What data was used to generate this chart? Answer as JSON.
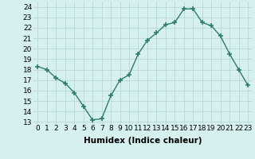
{
  "x": [
    0,
    1,
    2,
    3,
    4,
    5,
    6,
    7,
    8,
    9,
    10,
    11,
    12,
    13,
    14,
    15,
    16,
    17,
    18,
    19,
    20,
    21,
    22,
    23
  ],
  "y": [
    18.3,
    18.0,
    17.2,
    16.7,
    15.8,
    14.5,
    13.2,
    13.3,
    15.5,
    17.0,
    17.5,
    19.5,
    20.8,
    21.5,
    22.3,
    22.5,
    23.8,
    23.8,
    22.5,
    22.2,
    21.2,
    19.5,
    18.0,
    16.5
  ],
  "line_color": "#2e7d6e",
  "marker": "+",
  "marker_size": 4,
  "marker_lw": 1.2,
  "bg_color": "#d6f0ef",
  "grid_color": "#b8d8d5",
  "xlabel": "Humidex (Indice chaleur)",
  "ylabel_ticks": [
    13,
    14,
    15,
    16,
    17,
    18,
    19,
    20,
    21,
    22,
    23,
    24
  ],
  "xlim": [
    -0.5,
    23.5
  ],
  "ylim": [
    12.8,
    24.5
  ],
  "xlabel_fontsize": 7.5,
  "tick_fontsize": 6.5,
  "linewidth": 1.0
}
